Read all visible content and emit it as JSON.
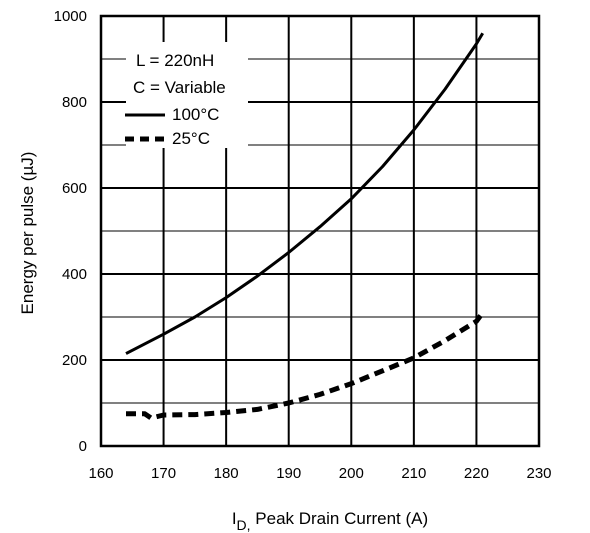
{
  "chart_data": {
    "type": "line",
    "title": "",
    "xlabel_main": "I",
    "xlabel_sub": "D,",
    "xlabel_rest": " Peak Drain Current  (A)",
    "ylabel": "Energy per pulse (µJ)",
    "xlim": [
      160,
      230
    ],
    "ylim": [
      0,
      1000
    ],
    "x_ticks": [
      "160",
      "170",
      "180",
      "190",
      "200",
      "210",
      "220",
      "230"
    ],
    "y_ticks": [
      "0",
      "200",
      "400",
      "600",
      "800",
      "1000"
    ],
    "grid": true,
    "legend_position": "top-left",
    "legend_notes": [
      "L = 220nH",
      "C = Variable"
    ],
    "series": [
      {
        "name": "100°C",
        "style": "solid",
        "x": [
          164,
          170,
          175,
          180,
          185,
          190,
          195,
          200,
          205,
          210,
          215,
          220,
          221
        ],
        "y": [
          215,
          260,
          300,
          345,
          395,
          450,
          510,
          575,
          650,
          735,
          830,
          935,
          960
        ]
      },
      {
        "name": "25°C",
        "style": "dashed",
        "x": [
          164,
          167,
          168,
          170,
          175,
          180,
          185,
          190,
          195,
          200,
          205,
          210,
          215,
          220,
          221
        ],
        "y": [
          75,
          75,
          65,
          72,
          73,
          78,
          85,
          100,
          120,
          145,
          175,
          205,
          245,
          290,
          310
        ]
      }
    ]
  }
}
